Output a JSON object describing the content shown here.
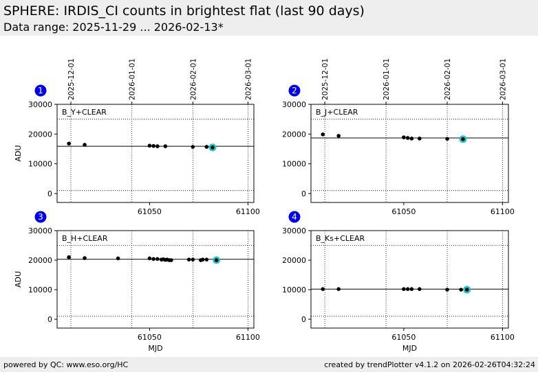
{
  "header": {
    "title": "SPHERE: IRDIS_CI counts in brightest flat (last 90 days)",
    "subtitle": "Data range: 2025-11-29 ... 2026-02-13*"
  },
  "footer": {
    "left": "powered by QC: www.eso.org/HC",
    "right": "created by trendPlotter v4.1.2 on 2026-02-26T04:32:24"
  },
  "colors": {
    "point": "#000000",
    "highlight": "#1fc7c7",
    "badge": "#0000ee",
    "header_bg": "#eeeeee"
  },
  "chart_data": [
    {
      "type": "scatter",
      "panel": "1",
      "label": "B_Y+CLEAR",
      "ylabel": "ADU",
      "xlabel": "",
      "xlim": [
        61003,
        61103
      ],
      "ylim": [
        -3000,
        30000
      ],
      "yticks": [
        0,
        10000,
        20000,
        30000
      ],
      "xticks": [
        61050,
        61100
      ],
      "top_ticks": [
        {
          "x": 61010,
          "label": "2025-12-01"
        },
        {
          "x": 61041,
          "label": "2026-01-01"
        },
        {
          "x": 61072,
          "label": "2026-02-01"
        },
        {
          "x": 61100,
          "label": "2026-03-01"
        }
      ],
      "ref_line": 15900,
      "upper_limit": 25000,
      "lower_limit": 1000,
      "x": [
        61009,
        61017,
        61050,
        61052,
        61054,
        61058,
        61072,
        61079
      ],
      "y": [
        16800,
        16400,
        16100,
        16000,
        15900,
        15900,
        15700,
        15700
      ],
      "highlight": {
        "x": 61082,
        "y": 15500
      }
    },
    {
      "type": "scatter",
      "panel": "2",
      "label": "B_J+CLEAR",
      "ylabel": "",
      "xlabel": "",
      "xlim": [
        61003,
        61103
      ],
      "ylim": [
        -3000,
        30000
      ],
      "yticks": [
        0,
        10000,
        20000,
        30000
      ],
      "xticks": [
        61050,
        61100
      ],
      "top_ticks": [
        {
          "x": 61010,
          "label": "2025-12-01"
        },
        {
          "x": 61041,
          "label": "2026-01-01"
        },
        {
          "x": 61072,
          "label": "2026-02-01"
        },
        {
          "x": 61100,
          "label": "2026-03-01"
        }
      ],
      "ref_line": 18700,
      "upper_limit": 25000,
      "lower_limit": 1000,
      "x": [
        61009,
        61017,
        61050,
        61052,
        61054,
        61058,
        61072
      ],
      "y": [
        19900,
        19400,
        18900,
        18700,
        18500,
        18500,
        18400
      ],
      "highlight": {
        "x": 61080,
        "y": 18300
      }
    },
    {
      "type": "scatter",
      "panel": "3",
      "label": "B_H+CLEAR",
      "ylabel": "ADU",
      "xlabel": "MJD",
      "xlim": [
        61003,
        61103
      ],
      "ylim": [
        -3000,
        30000
      ],
      "yticks": [
        0,
        10000,
        20000,
        30000
      ],
      "xticks": [
        61050,
        61100
      ],
      "top_ticks": [],
      "ref_line": 20300,
      "upper_limit": 25000,
      "lower_limit": 1000,
      "x": [
        61009,
        61017,
        61034,
        61050,
        61052,
        61054,
        61056,
        61057,
        61058,
        61059,
        61060,
        61061,
        61070,
        61072,
        61076,
        61077,
        61079
      ],
      "y": [
        21000,
        20700,
        20600,
        20600,
        20400,
        20400,
        20200,
        20300,
        20100,
        20200,
        20000,
        20000,
        20200,
        20200,
        20000,
        20200,
        20200
      ],
      "highlight": {
        "x": 61084,
        "y": 20000
      }
    },
    {
      "type": "scatter",
      "panel": "4",
      "label": "B_Ks+CLEAR",
      "ylabel": "",
      "xlabel": "MJD",
      "xlim": [
        61003,
        61103
      ],
      "ylim": [
        -3000,
        30000
      ],
      "yticks": [
        0,
        10000,
        20000,
        30000
      ],
      "xticks": [
        61050,
        61100
      ],
      "top_ticks": [],
      "ref_line": 10200,
      "upper_limit": 25000,
      "lower_limit": 1000,
      "x": [
        61009,
        61017,
        61050,
        61052,
        61054,
        61058,
        61072,
        61079
      ],
      "y": [
        10200,
        10200,
        10200,
        10200,
        10200,
        10200,
        10000,
        10000
      ],
      "highlight": {
        "x": 61082,
        "y": 10000
      }
    }
  ]
}
